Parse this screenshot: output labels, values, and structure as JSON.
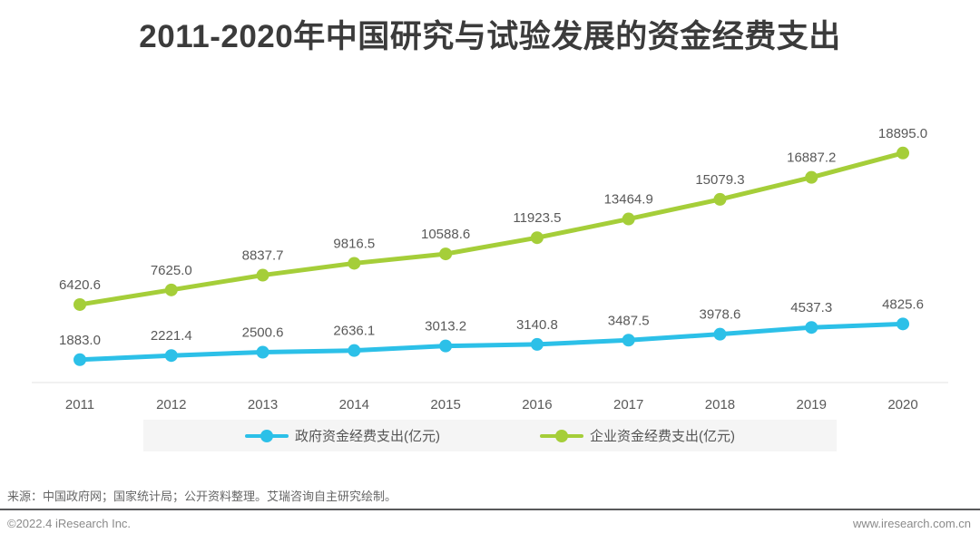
{
  "page": {
    "title": "2011-2020年中国研究与试验发展的资金经费支出",
    "source_note": "来源：中国政府网；国家统计局；公开资料整理。艾瑞咨询自主研究绘制。",
    "footer": {
      "copyright": "©2022.4 iResearch Inc.",
      "website": "www.iresearch.com.cn"
    }
  },
  "colors": {
    "title_text": "#3b3b3b",
    "government_series": "#2cc0e8",
    "enterprise_series": "#a5ce39",
    "data_label_text": "#595959",
    "axis_line": "#e3e3e3",
    "legend_background": "#f5f5f5",
    "legend_text": "#555555",
    "divider": "#58595b",
    "footer_text": "#8a8a8a"
  },
  "chart_data": {
    "type": "line",
    "title": "2011-2020年中国研究与试验发展的资金经费支出",
    "categories": [
      "2011",
      "2012",
      "2013",
      "2014",
      "2015",
      "2016",
      "2017",
      "2018",
      "2019",
      "2020"
    ],
    "series": [
      {
        "key": "government",
        "name": "政府资金经费支出(亿元)",
        "color": "#2cc0e8",
        "values": [
          1883.0,
          2221.4,
          2500.6,
          2636.1,
          3013.2,
          3140.8,
          3487.5,
          3978.6,
          4537.3,
          4825.6
        ]
      },
      {
        "key": "enterprise",
        "name": "企业资金经费支出(亿元)",
        "color": "#a5ce39",
        "values": [
          6420.6,
          7625.0,
          8837.7,
          9816.5,
          10588.6,
          11923.5,
          13464.9,
          15079.3,
          16887.2,
          18895.0
        ]
      }
    ],
    "xlabel": "",
    "ylabel": "",
    "ylim": [
      0,
      24400
    ],
    "grid": false,
    "y_axis_visible": false,
    "data_labels": true,
    "legend_position": "bottom"
  }
}
